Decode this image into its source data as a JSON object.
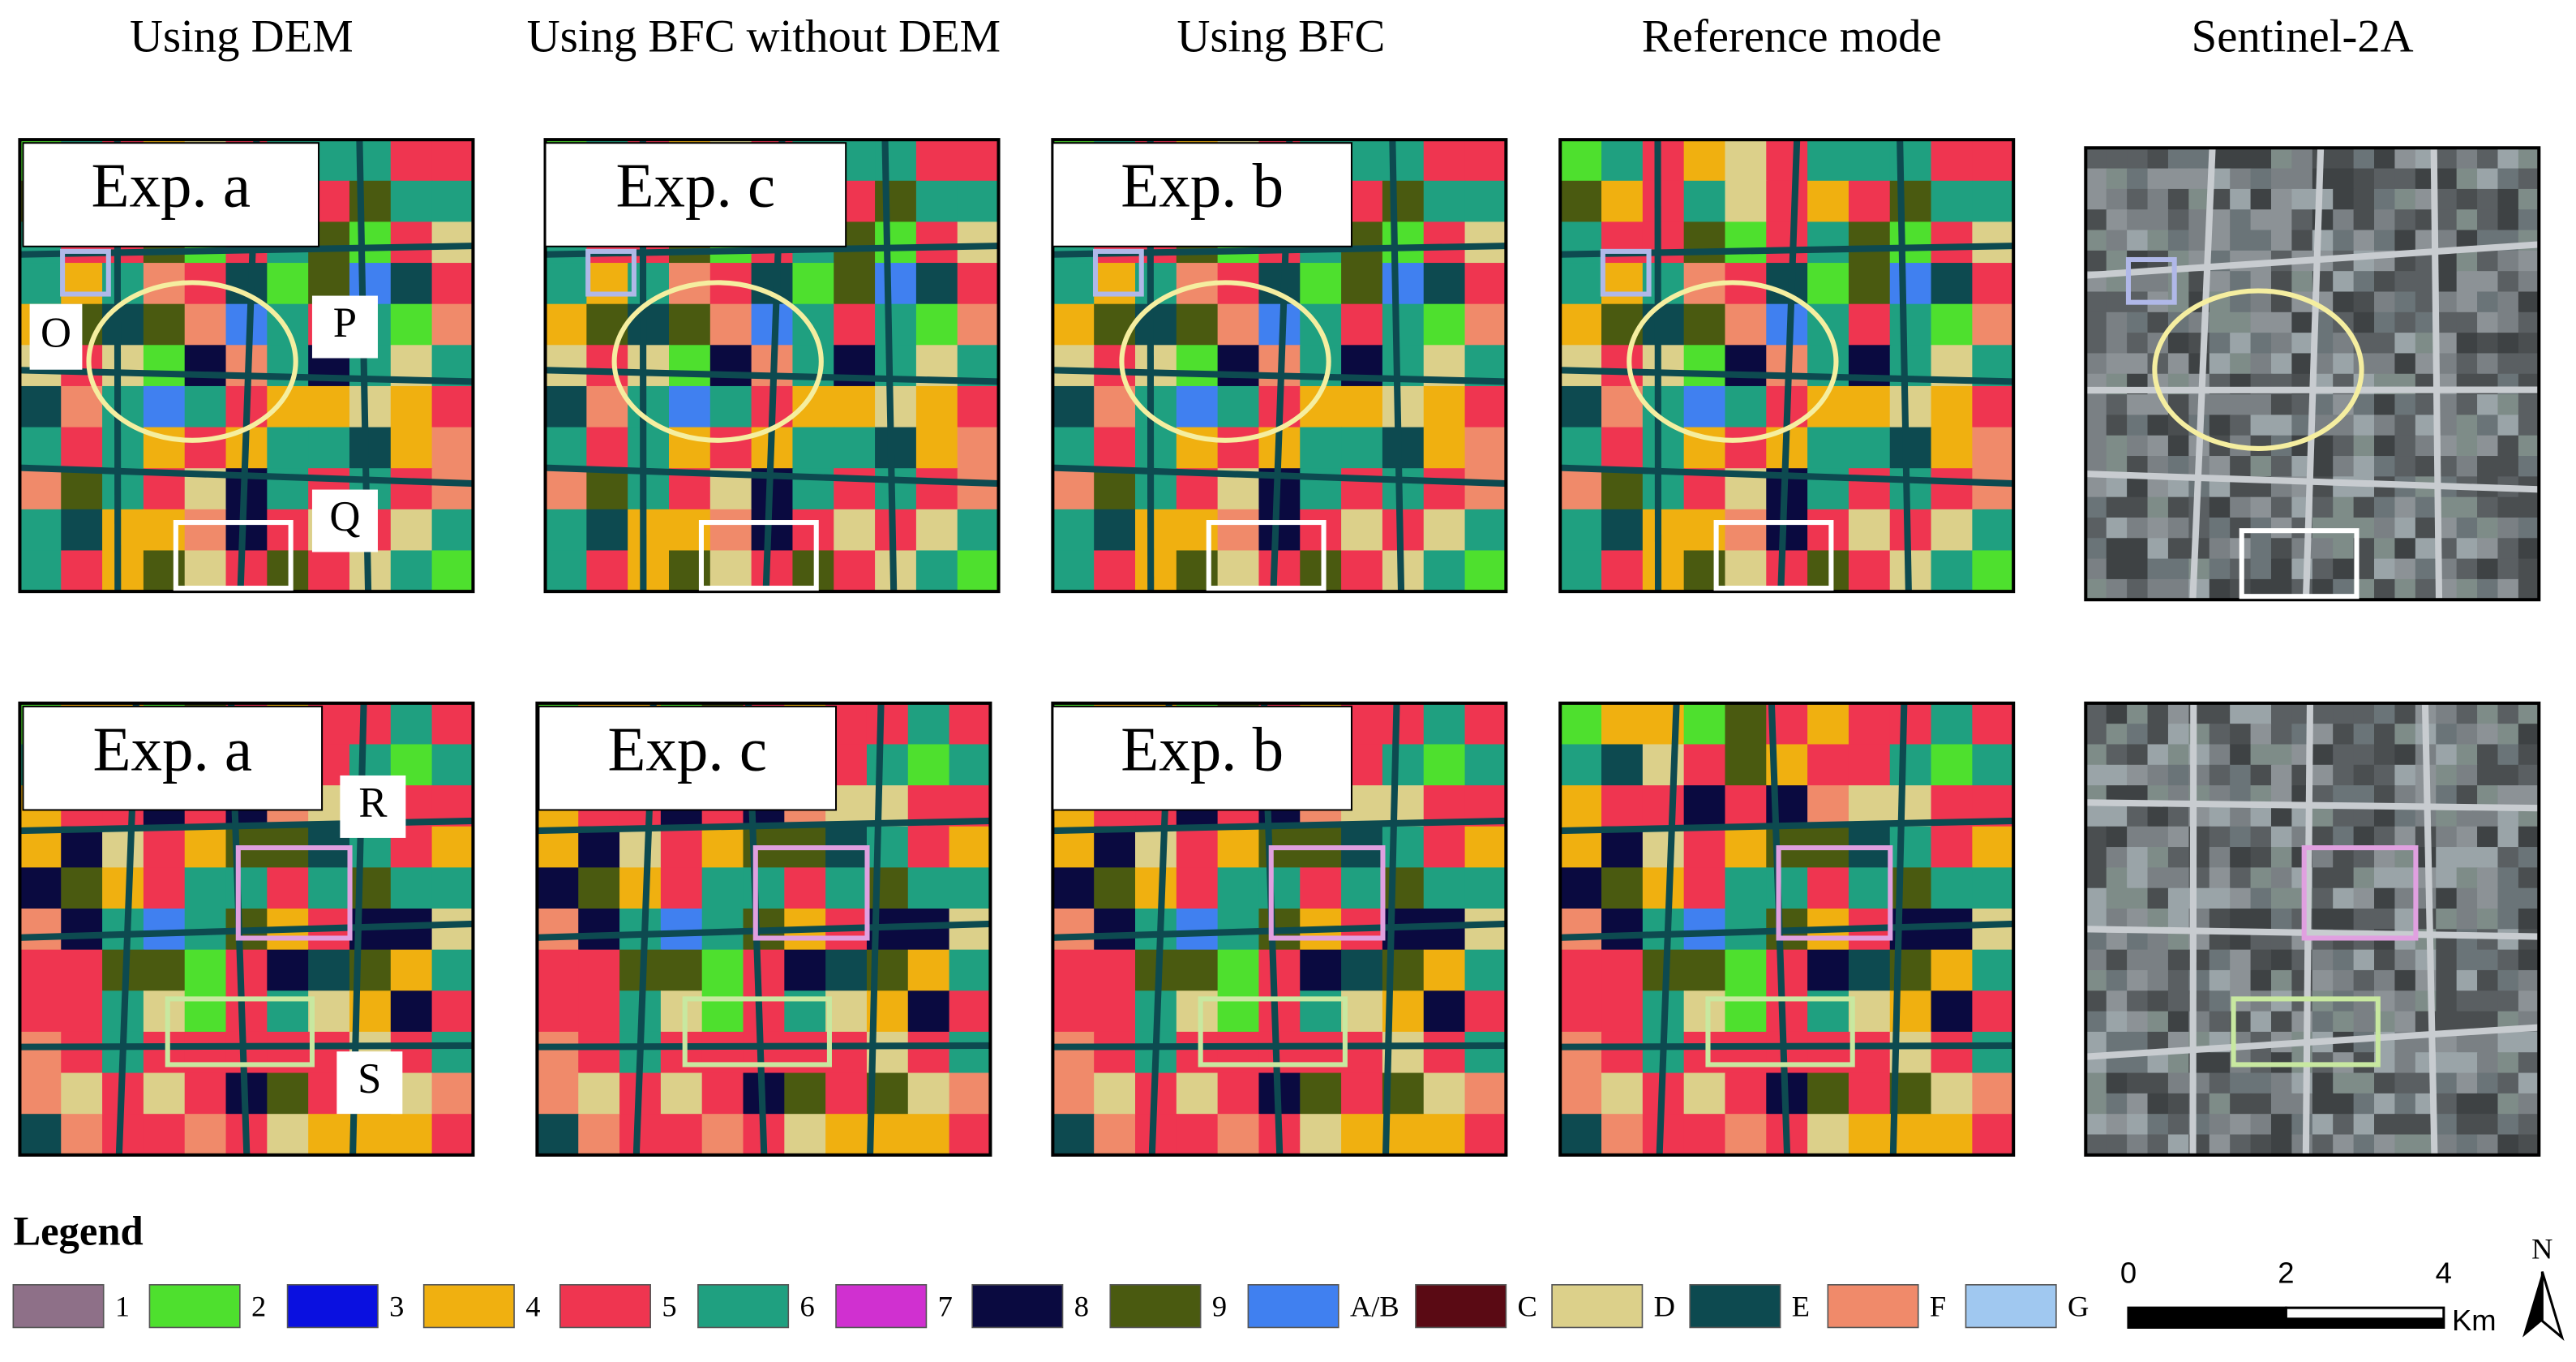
{
  "columns": [
    "Using DEM",
    "Using BFC without DEM",
    "Using BFC",
    "Reference mode",
    "Sentinel-2A"
  ],
  "panels": {
    "row1": [
      "Exp. a",
      "Exp. c",
      "Exp. b"
    ],
    "row2": [
      "Exp. a",
      "Exp. c",
      "Exp. b"
    ]
  },
  "annotations": [
    "O",
    "P",
    "Q",
    "R",
    "S"
  ],
  "legend": {
    "title": "Legend",
    "items": [
      {
        "label": "1",
        "color": "#8e7088"
      },
      {
        "label": "2",
        "color": "#4ee02e"
      },
      {
        "label": "3",
        "color": "#0a10e0"
      },
      {
        "label": "4",
        "color": "#f0b010"
      },
      {
        "label": "5",
        "color": "#ef3550"
      },
      {
        "label": "6",
        "color": "#1fa080"
      },
      {
        "label": "7",
        "color": "#d030d0"
      },
      {
        "label": "8",
        "color": "#0a0a40"
      },
      {
        "label": "9",
        "color": "#4a5a10"
      },
      {
        "label": "A/B",
        "color": "#4080f0"
      },
      {
        "label": "C",
        "color": "#5a0a14"
      },
      {
        "label": "D",
        "color": "#dcd08a"
      },
      {
        "label": "E",
        "color": "#0d4a50"
      },
      {
        "label": "F",
        "color": "#f08a6a"
      },
      {
        "label": "G",
        "color": "#a0c8f0"
      }
    ]
  },
  "scale_bar": {
    "ticks": [
      "0",
      "2",
      "4"
    ],
    "unit": "Km"
  },
  "north": "N"
}
